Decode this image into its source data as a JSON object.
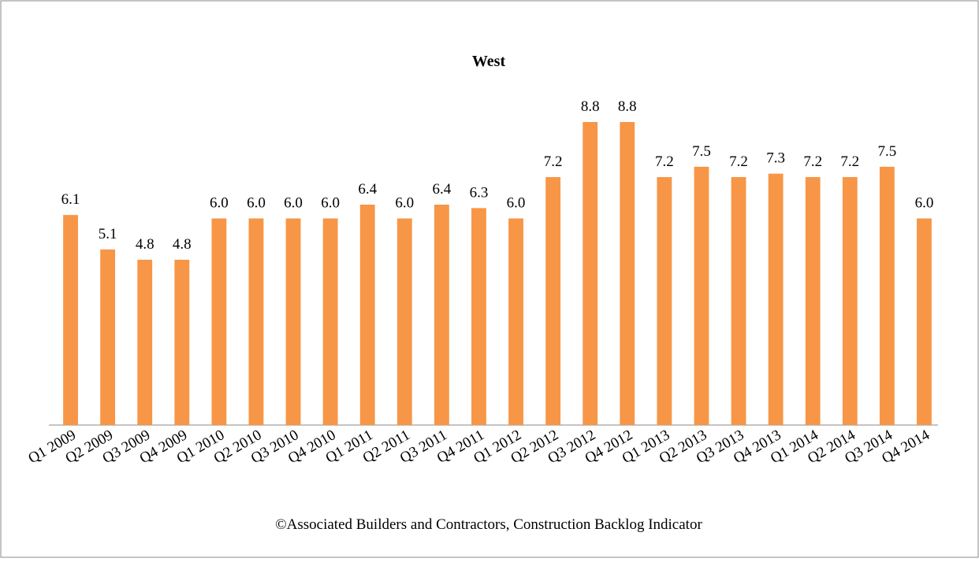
{
  "chart_data": {
    "type": "bar",
    "title": "West",
    "categories": [
      "Q1 2009",
      "Q2 2009",
      "Q3 2009",
      "Q4 2009",
      "Q1 2010",
      "Q2 2010",
      "Q3 2010",
      "Q4 2010",
      "Q1 2011",
      "Q2 2011",
      "Q3 2011",
      "Q4 2011",
      "Q1 2012",
      "Q2 2012",
      "Q3 2012",
      "Q4 2012",
      "Q1 2013",
      "Q2 2013",
      "Q3 2013",
      "Q4 2013",
      "Q1 2014",
      "Q2 2014",
      "Q3 2014",
      "Q4 2014"
    ],
    "values": [
      6.1,
      5.1,
      4.8,
      4.8,
      6.0,
      6.0,
      6.0,
      6.0,
      6.4,
      6.0,
      6.4,
      6.3,
      6.0,
      7.2,
      8.8,
      8.8,
      7.2,
      7.5,
      7.2,
      7.3,
      7.2,
      7.2,
      7.5,
      6.0
    ],
    "value_labels": [
      "6.1",
      "5.1",
      "4.8",
      "4.8",
      "6.0",
      "6.0",
      "6.0",
      "6.0",
      "6.4",
      "6.0",
      "6.4",
      "6.3",
      "6.0",
      "7.2",
      "8.8",
      "8.8",
      "7.2",
      "7.5",
      "7.2",
      "7.3",
      "7.2",
      "7.2",
      "7.5",
      "6.0"
    ],
    "color": "#f79646",
    "ylim": [
      0,
      10
    ],
    "caption": "©Associated Builders and Contractors, Construction Backlog Indicator"
  }
}
